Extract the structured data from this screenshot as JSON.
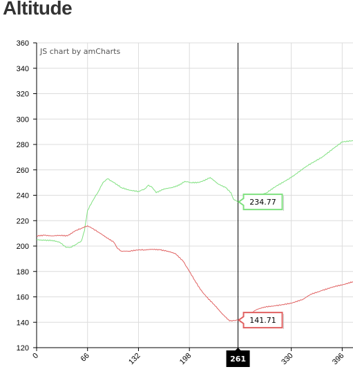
{
  "page_title": "Altitude",
  "chart_data": {
    "type": "line",
    "title": "Altitude",
    "credit": "JS chart by amCharts",
    "xlabel": "",
    "ylabel": "",
    "xlim": [
      0,
      410
    ],
    "ylim": [
      120,
      360
    ],
    "x_ticks": [
      0,
      66,
      132,
      198,
      330,
      396
    ],
    "y_ticks": [
      120,
      140,
      160,
      180,
      200,
      220,
      240,
      260,
      280,
      300,
      320,
      340,
      360
    ],
    "grid": true,
    "cursor": {
      "x": 261,
      "label": "261"
    },
    "series": [
      {
        "color": "#7ee07e",
        "cursor_value": "234.77",
        "points": [
          [
            0,
            205
          ],
          [
            10,
            204.5
          ],
          [
            20,
            204.5
          ],
          [
            30,
            203
          ],
          [
            38,
            199
          ],
          [
            44,
            199
          ],
          [
            50,
            201
          ],
          [
            58,
            204
          ],
          [
            62,
            212
          ],
          [
            66,
            228
          ],
          [
            72,
            235
          ],
          [
            80,
            243
          ],
          [
            86,
            250
          ],
          [
            92,
            253
          ],
          [
            100,
            250
          ],
          [
            110,
            246
          ],
          [
            120,
            244
          ],
          [
            132,
            243
          ],
          [
            140,
            245
          ],
          [
            145,
            248
          ],
          [
            150,
            246
          ],
          [
            155,
            242
          ],
          [
            165,
            245
          ],
          [
            175,
            246
          ],
          [
            185,
            248
          ],
          [
            192,
            251
          ],
          [
            200,
            250
          ],
          [
            210,
            250
          ],
          [
            215,
            251
          ],
          [
            225,
            254
          ],
          [
            235,
            249
          ],
          [
            245,
            246
          ],
          [
            252,
            242
          ],
          [
            255,
            237
          ],
          [
            261,
            234.77
          ],
          [
            270,
            234
          ],
          [
            275,
            238
          ],
          [
            285,
            239
          ],
          [
            298,
            242
          ],
          [
            310,
            247
          ],
          [
            330,
            254
          ],
          [
            350,
            263
          ],
          [
            370,
            270
          ],
          [
            385,
            277
          ],
          [
            396,
            282
          ],
          [
            410,
            283
          ]
        ]
      },
      {
        "color": "#e06060",
        "cursor_value": "141.71",
        "points": [
          [
            0,
            208
          ],
          [
            10,
            208.5
          ],
          [
            20,
            208
          ],
          [
            30,
            208.5
          ],
          [
            40,
            208
          ],
          [
            50,
            212
          ],
          [
            58,
            214
          ],
          [
            66,
            216
          ],
          [
            72,
            214
          ],
          [
            80,
            211
          ],
          [
            90,
            207
          ],
          [
            100,
            203
          ],
          [
            105,
            198
          ],
          [
            110,
            196
          ],
          [
            120,
            196
          ],
          [
            132,
            197
          ],
          [
            140,
            197
          ],
          [
            150,
            197.5
          ],
          [
            160,
            197
          ],
          [
            170,
            196
          ],
          [
            180,
            194
          ],
          [
            190,
            188
          ],
          [
            198,
            180
          ],
          [
            205,
            173
          ],
          [
            212,
            166
          ],
          [
            220,
            160
          ],
          [
            230,
            154
          ],
          [
            240,
            147
          ],
          [
            250,
            141
          ],
          [
            261,
            141.71
          ],
          [
            275,
            146
          ],
          [
            285,
            150
          ],
          [
            295,
            152
          ],
          [
            310,
            153
          ],
          [
            330,
            155
          ],
          [
            345,
            158
          ],
          [
            355,
            162
          ],
          [
            370,
            165
          ],
          [
            385,
            168
          ],
          [
            400,
            170
          ],
          [
            410,
            172
          ]
        ]
      }
    ]
  }
}
